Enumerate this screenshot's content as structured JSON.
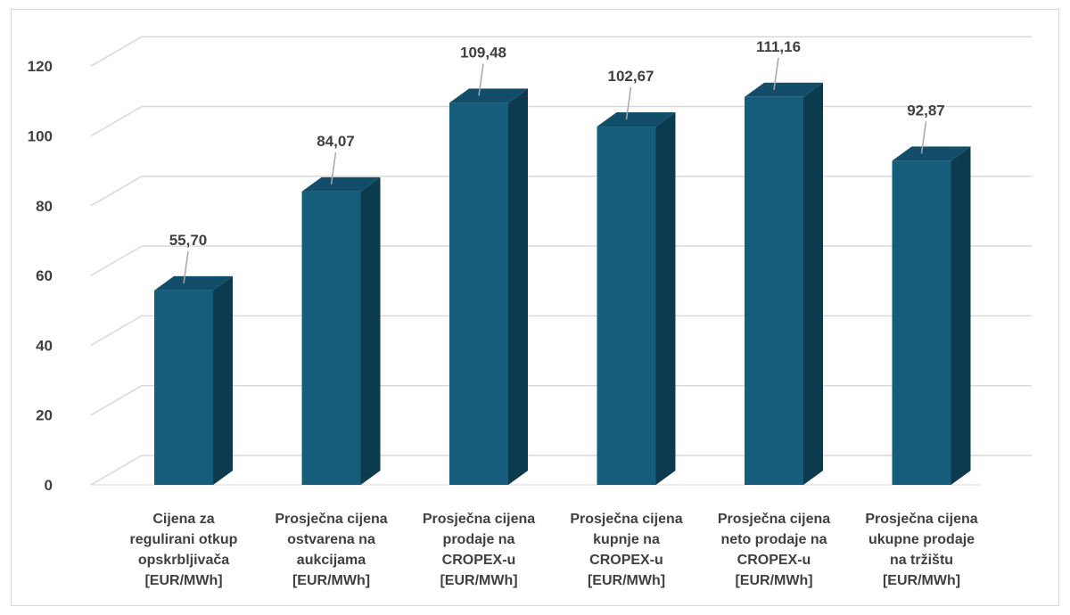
{
  "chart_data": {
    "type": "bar",
    "three_d": true,
    "categories": [
      [
        "Cijena za",
        "regulirani otkup",
        "opskrbljivača",
        "[EUR/MWh]"
      ],
      [
        "Prosječna cijena",
        "ostvarena na",
        "aukcijama",
        "[EUR/MWh]"
      ],
      [
        "Prosječna cijena",
        "prodaje na",
        "CROPEX-u",
        "[EUR/MWh]"
      ],
      [
        "Prosječna cijena",
        "kupnje na",
        "CROPEX-u",
        "[EUR/MWh]"
      ],
      [
        "Prosječna cijena",
        "neto prodaje na",
        "CROPEX-u",
        "[EUR/MWh]"
      ],
      [
        "Prosječna cijena",
        "ukupne prodaje",
        "na tržištu",
        "[EUR/MWh]"
      ]
    ],
    "values": [
      55.7,
      84.07,
      109.48,
      102.67,
      111.16,
      92.87
    ],
    "value_labels": [
      "55,70",
      "84,07",
      "109,48",
      "102,67",
      "111,16",
      "92,87"
    ],
    "yticks": [
      "0",
      "20",
      "40",
      "60",
      "80",
      "100",
      "120"
    ],
    "ylim": [
      0,
      120
    ],
    "grid": true,
    "legend": "none",
    "colors": {
      "front": "#165d7c",
      "side": "#0c3a4e",
      "top": "#124e69",
      "grid": "#d9d9d9",
      "wall": "#d9d9d9",
      "leader": "#a6a6a6"
    }
  }
}
